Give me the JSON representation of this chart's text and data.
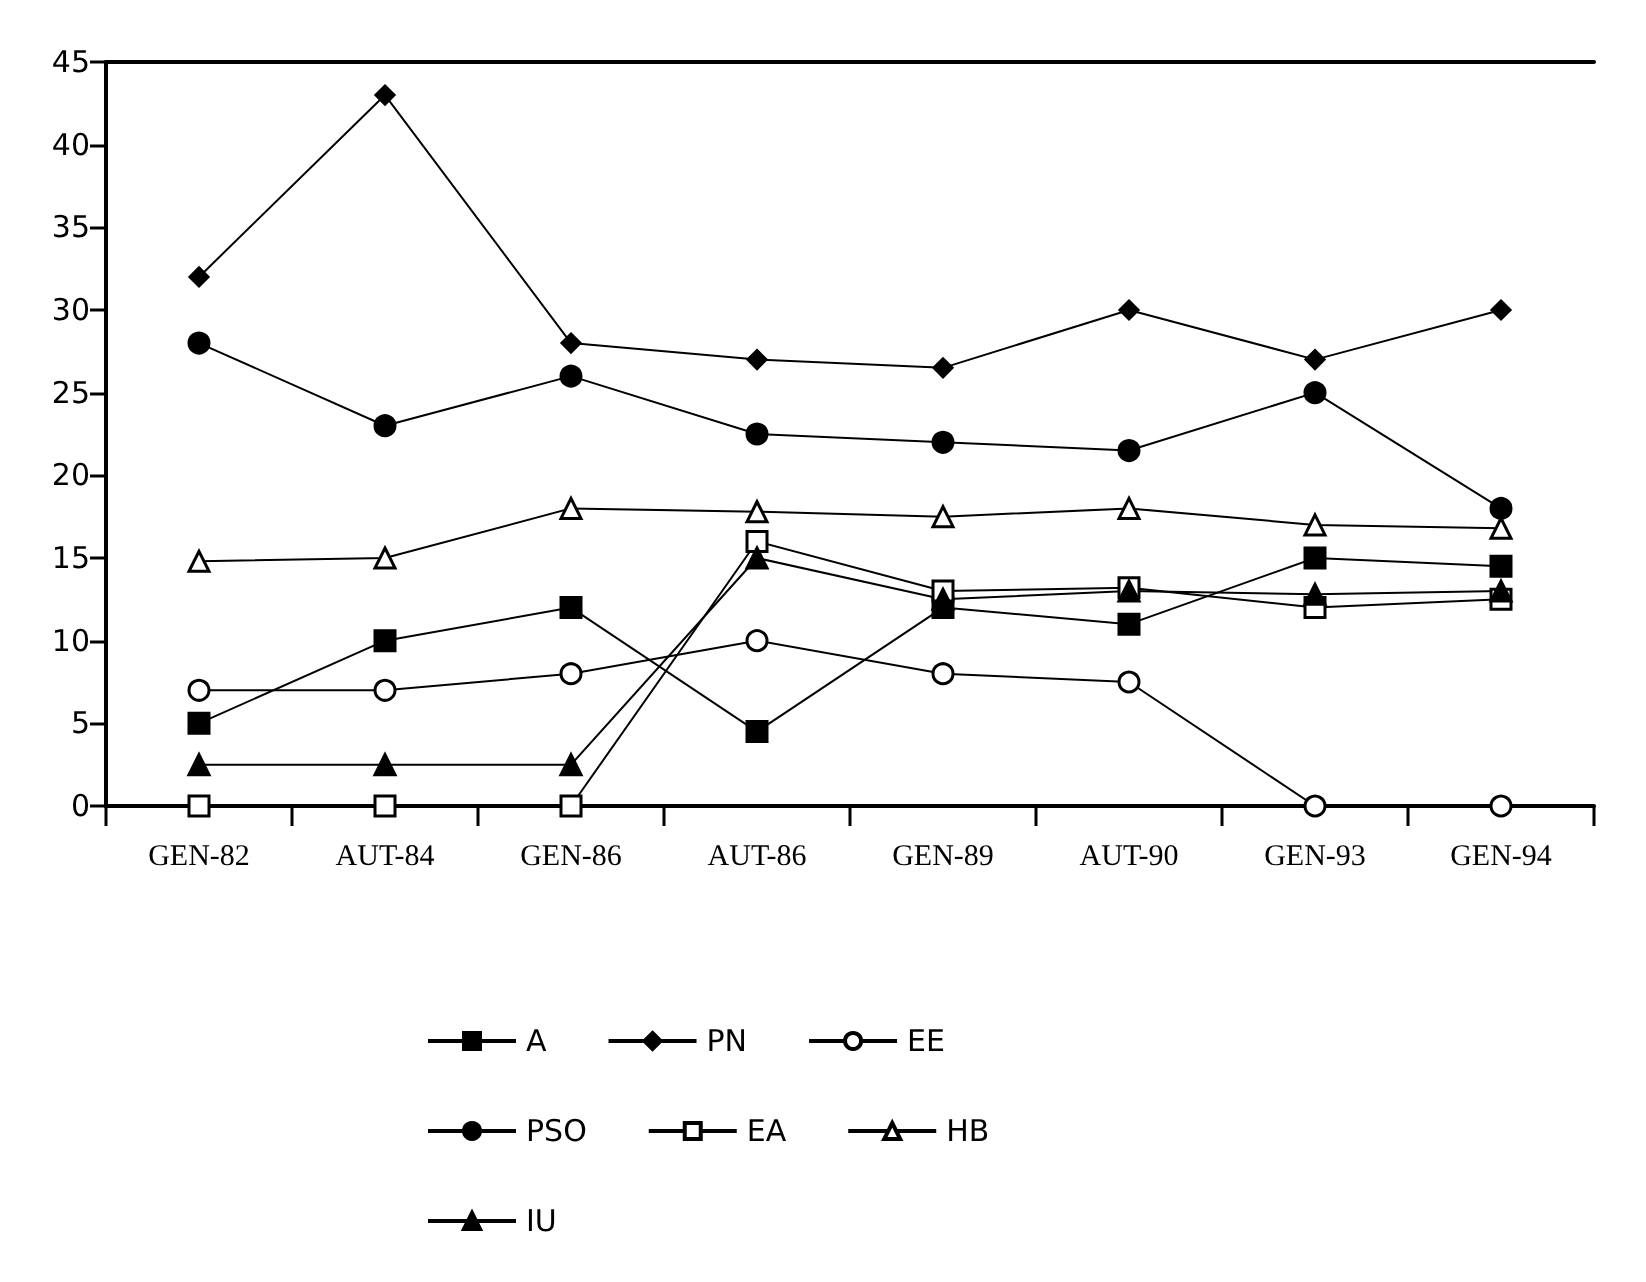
{
  "chart_data": {
    "type": "line",
    "categories": [
      "GEN-82",
      "AUT-84",
      "GEN-86",
      "AUT-86",
      "GEN-89",
      "AUT-90",
      "GEN-93",
      "GEN-94"
    ],
    "series": [
      {
        "name": "A",
        "color": "#000000",
        "marker": "square",
        "values": [
          5,
          10,
          12,
          4.5,
          12,
          11,
          15,
          14.5
        ]
      },
      {
        "name": "PN",
        "color": "#000000",
        "marker": "diamond",
        "values": [
          32,
          43,
          28,
          27,
          26.5,
          30,
          27,
          30
        ]
      },
      {
        "name": "EE",
        "color": "#ffffff",
        "marker": "circle",
        "values": [
          7,
          7,
          8,
          10,
          8,
          7.5,
          0,
          0
        ]
      },
      {
        "name": "PSO",
        "color": "#000000",
        "marker": "circle",
        "values": [
          28,
          23,
          26,
          22.5,
          22,
          21.5,
          25,
          18
        ]
      },
      {
        "name": "EA",
        "color": "#ffffff",
        "marker": "square",
        "values": [
          0,
          0,
          0,
          16,
          13,
          13.2,
          12,
          12.5
        ]
      },
      {
        "name": "HB",
        "color": "#ffffff",
        "marker": "triangle",
        "values": [
          14.8,
          15,
          18,
          17.8,
          17.5,
          18,
          17,
          16.8
        ]
      },
      {
        "name": "IU",
        "color": "#000000",
        "marker": "triangle",
        "values": [
          2.5,
          2.5,
          2.5,
          15,
          12.5,
          13,
          12.8,
          13
        ]
      }
    ],
    "ylim": [
      0,
      45
    ],
    "yticks": [
      0,
      5,
      10,
      15,
      20,
      25,
      30,
      35,
      40,
      45
    ],
    "grid": false,
    "legend": "bottom",
    "line_style": "solid"
  }
}
